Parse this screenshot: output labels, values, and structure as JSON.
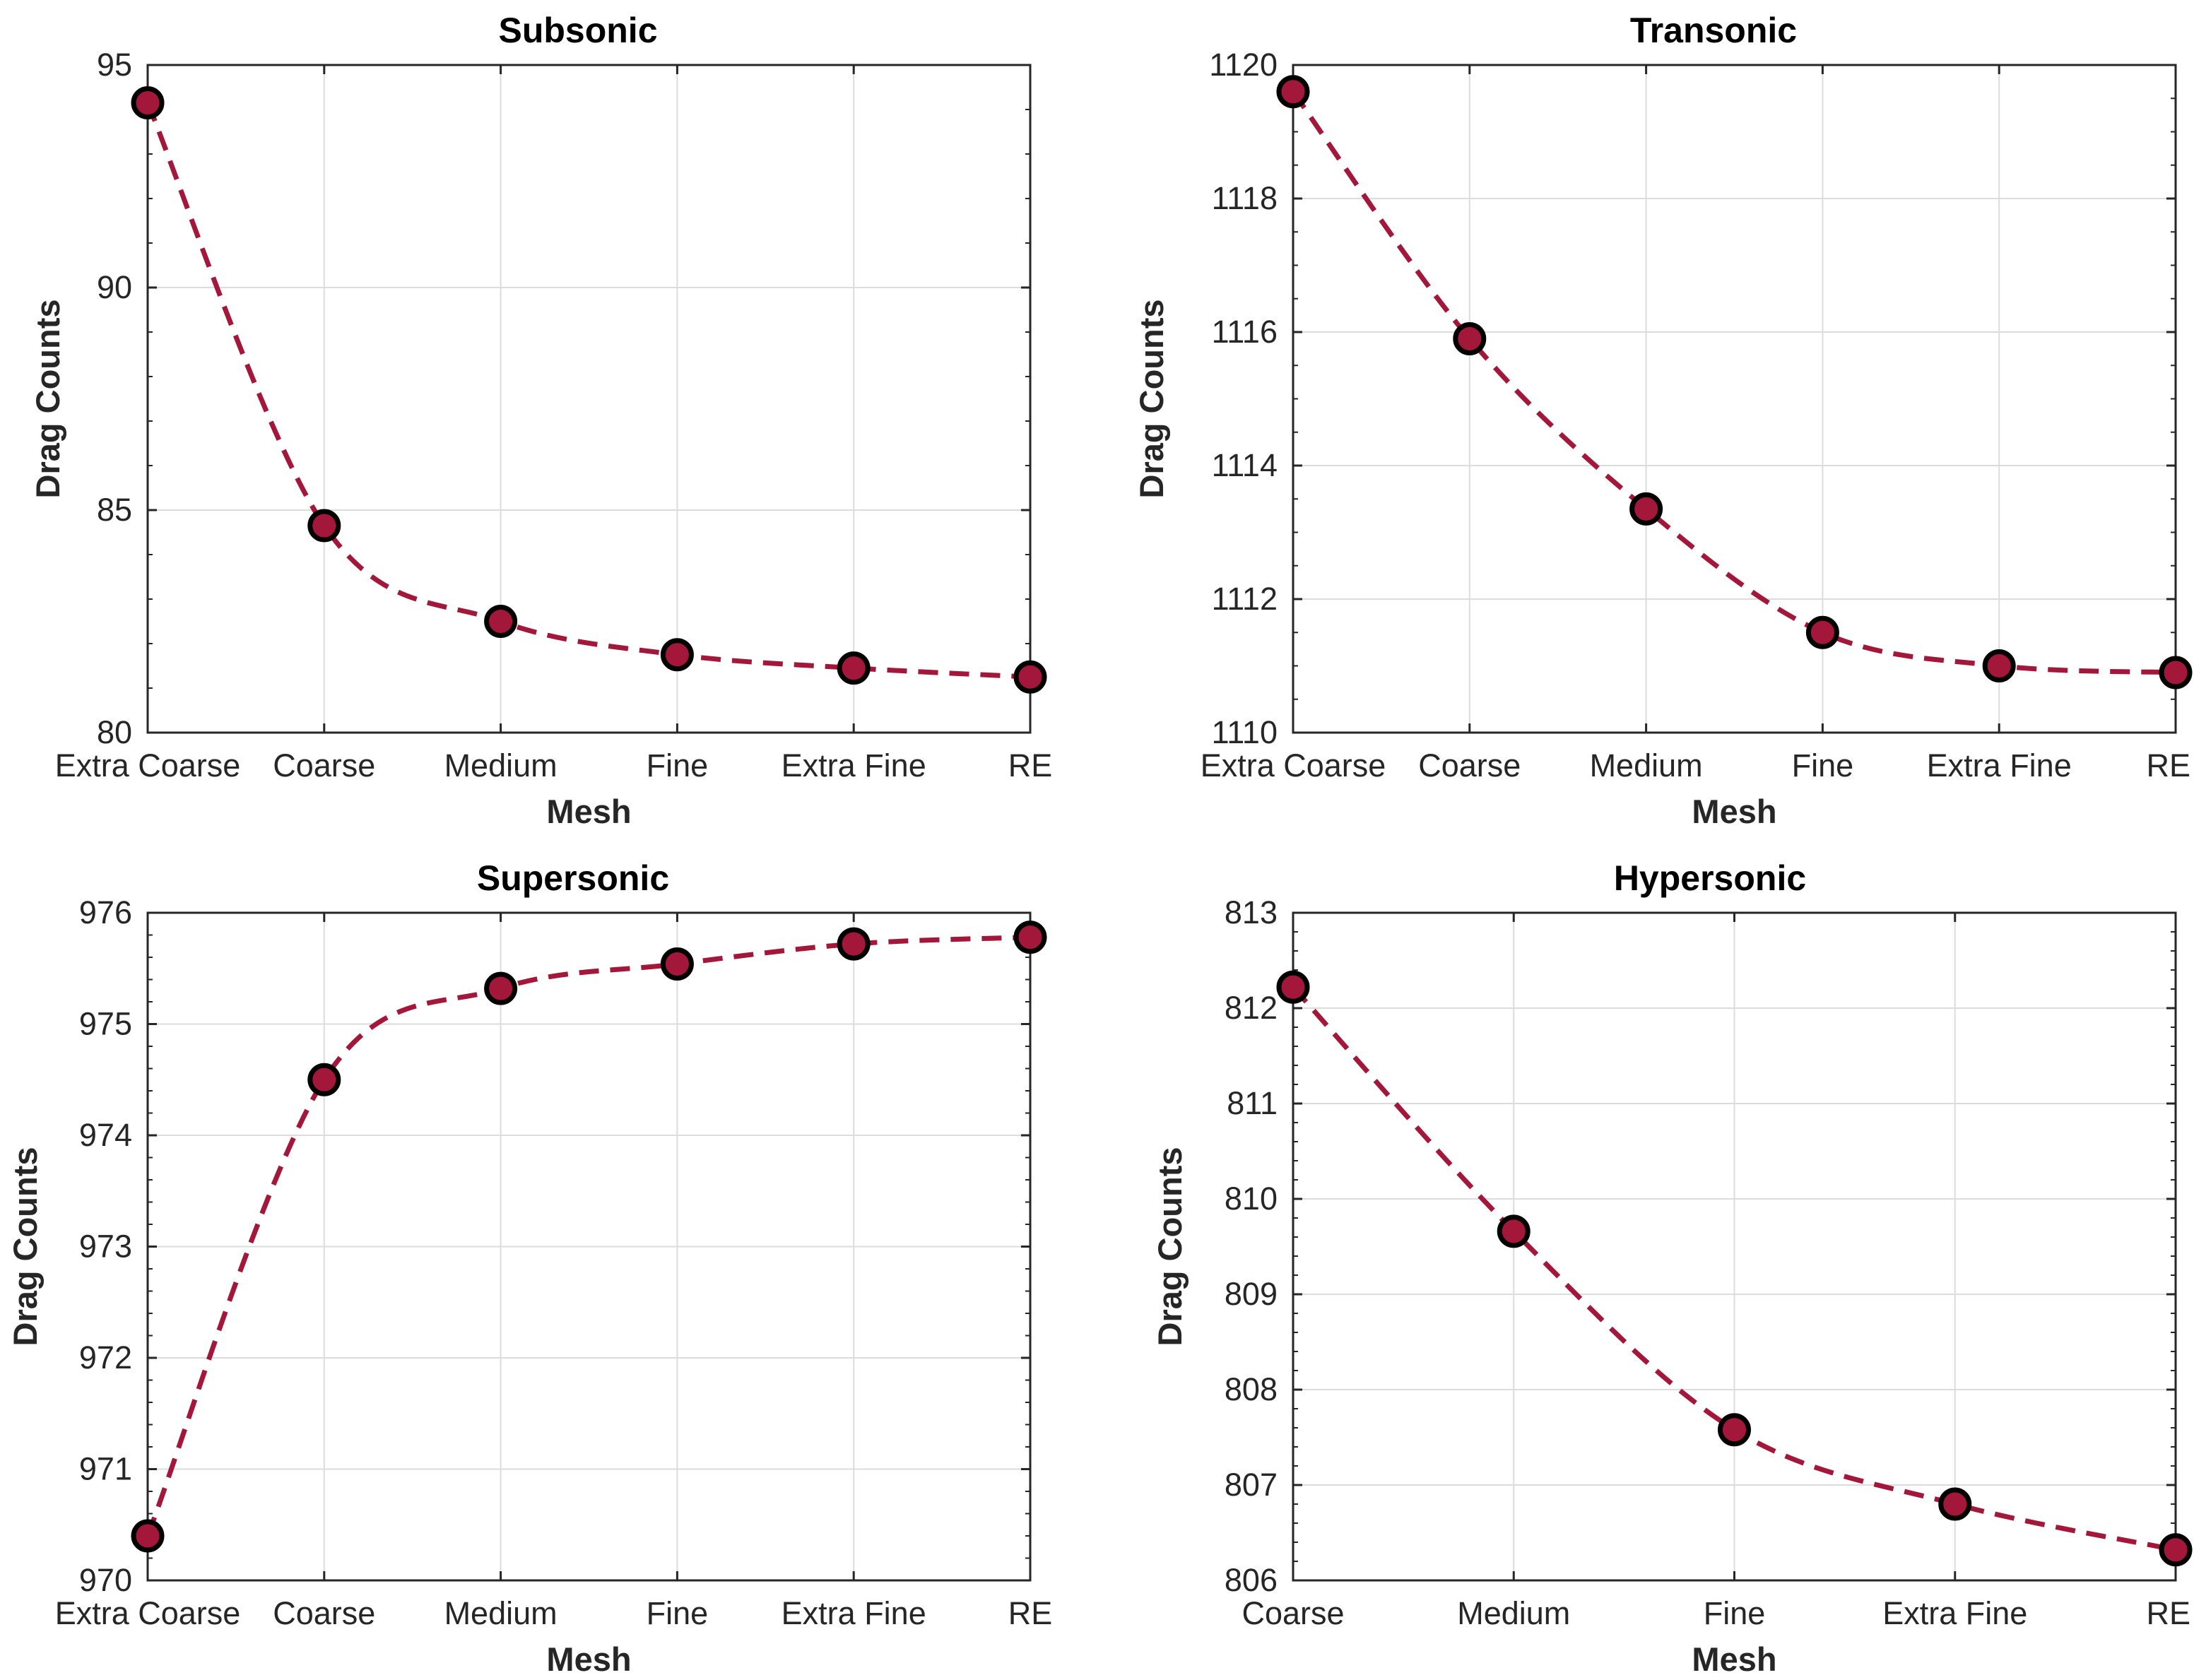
{
  "colors": {
    "line": "#A3183A",
    "marker_fill": "#A3183A",
    "marker_edge": "#000000",
    "grid": "#DCDCDC",
    "axis": "#262626"
  },
  "chart_data": [
    {
      "type": "line",
      "title": "Subsonic",
      "xlabel": "Mesh",
      "ylabel": "Drag Counts",
      "categories": [
        "Extra Coarse",
        "Coarse",
        "Medium",
        "Fine",
        "Extra Fine",
        "RE"
      ],
      "values": [
        94.15,
        84.65,
        82.5,
        81.75,
        81.45,
        81.25
      ],
      "ylim": [
        80,
        95
      ],
      "yticks": [
        80,
        85,
        90,
        95
      ],
      "ytick_labels": [
        "80",
        "85",
        "90",
        "95"
      ],
      "grid": true
    },
    {
      "type": "line",
      "title": "Transonic",
      "xlabel": "Mesh",
      "ylabel": "Drag Counts",
      "categories": [
        "Extra Coarse",
        "Coarse",
        "Medium",
        "Fine",
        "Extra Fine",
        "RE"
      ],
      "values": [
        1119.6,
        1115.9,
        1113.35,
        1111.5,
        1111.0,
        1110.9
      ],
      "ylim": [
        1110,
        1120
      ],
      "yticks": [
        1110,
        1112,
        1114,
        1116,
        1118,
        1120
      ],
      "ytick_labels": [
        "1110",
        "1112",
        "1114",
        "1116",
        "1118",
        "1120"
      ],
      "grid": true
    },
    {
      "type": "line",
      "title": "Supersonic",
      "xlabel": "Mesh",
      "ylabel": "Drag Counts",
      "categories": [
        "Extra Coarse",
        "Coarse",
        "Medium",
        "Fine",
        "Extra Fine",
        "RE"
      ],
      "values": [
        970.4,
        974.5,
        975.32,
        975.54,
        975.72,
        975.78
      ],
      "ylim": [
        970,
        976
      ],
      "yticks": [
        970,
        971,
        972,
        973,
        974,
        975,
        976
      ],
      "ytick_labels": [
        "970",
        "971",
        "972",
        "973",
        "974",
        "975",
        "976"
      ],
      "grid": true
    },
    {
      "type": "line",
      "title": "Hypersonic",
      "xlabel": "Mesh",
      "ylabel": "Drag Counts",
      "categories": [
        "Coarse",
        "Medium",
        "Fine",
        "Extra Fine",
        "RE"
      ],
      "values": [
        812.22,
        809.66,
        807.58,
        806.8,
        806.32
      ],
      "ylim": [
        806,
        813
      ],
      "yticks": [
        806,
        807,
        808,
        809,
        810,
        811,
        812,
        813
      ],
      "ytick_labels": [
        "806",
        "807",
        "808",
        "809",
        "810",
        "811",
        "812",
        "813"
      ],
      "grid": true
    }
  ]
}
